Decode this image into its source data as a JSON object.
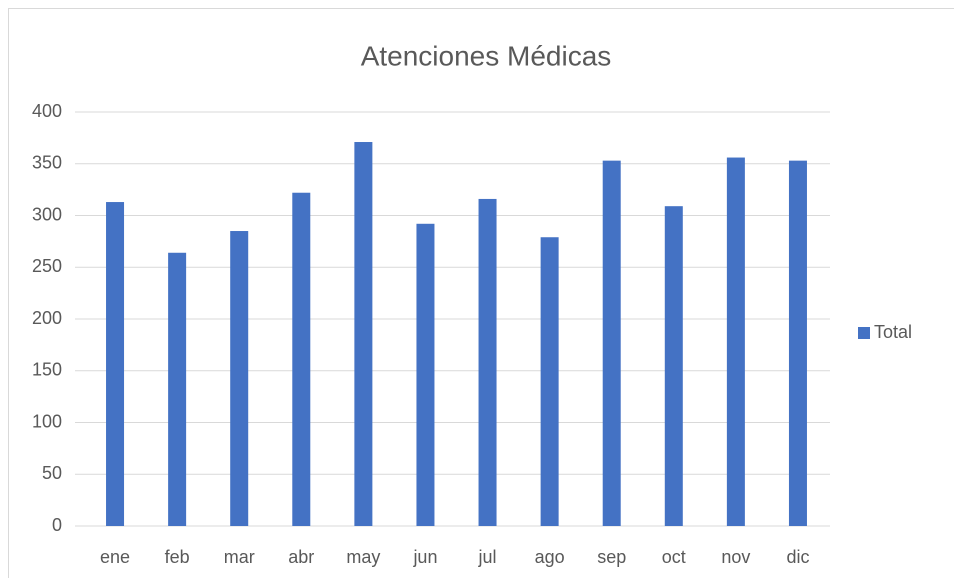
{
  "chart_data": {
    "type": "bar",
    "title": "Atenciones Médicas",
    "categories": [
      "ene",
      "feb",
      "mar",
      "abr",
      "may",
      "jun",
      "jul",
      "ago",
      "sep",
      "oct",
      "nov",
      "dic"
    ],
    "series": [
      {
        "name": "Total",
        "color": "#4472c4",
        "values": [
          313,
          264,
          285,
          322,
          371,
          292,
          316,
          279,
          353,
          309,
          356,
          353
        ]
      }
    ],
    "ylim": [
      0,
      400
    ],
    "yticks": [
      0,
      50,
      100,
      150,
      200,
      250,
      300,
      350,
      400
    ],
    "grid": true,
    "legend": "right"
  }
}
